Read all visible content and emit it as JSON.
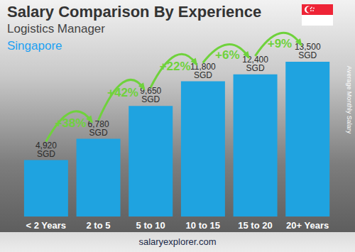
{
  "chart_data": {
    "type": "bar",
    "title": "Salary Comparison By Experience",
    "subtitle": "Logistics Manager",
    "region": "Singapore",
    "y_label": "Average Monthly Salary",
    "source": "salaryexplorer.com",
    "categories": [
      "< 2 Years",
      "2 to 5",
      "5 to 10",
      "10 to 15",
      "15 to 20",
      "20+ Years"
    ],
    "values": [
      4920,
      6780,
      9650,
      11800,
      12400,
      13500
    ],
    "value_labels": [
      "4,920 SGD",
      "6,780 SGD",
      "9,650 SGD",
      "11,800 SGD",
      "12,400 SGD",
      "13,500 SGD"
    ],
    "annotations": [
      {
        "value": 38,
        "label": "+38%"
      },
      {
        "value": 42,
        "label": "+42%"
      },
      {
        "value": 22,
        "label": "+22%"
      },
      {
        "value": 6,
        "label": "+6%"
      },
      {
        "value": 9,
        "label": "+9%"
      }
    ],
    "color": "#1fa3e0",
    "ylim": [
      0,
      14000
    ],
    "data_labels": true,
    "tick_labels": "x",
    "grid": false
  }
}
